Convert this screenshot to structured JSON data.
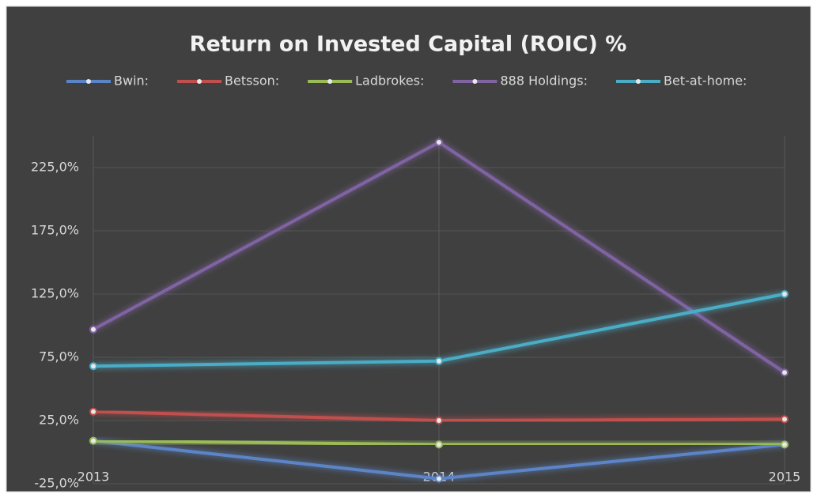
{
  "chart_data": {
    "type": "line",
    "title": "Return on Invested Capital (ROIC) %",
    "categories": [
      "2013",
      "2014",
      "2015"
    ],
    "series": [
      {
        "name": "Bwin:",
        "color": "#5b84c6",
        "values": [
          9,
          -21,
          6
        ]
      },
      {
        "name": "Betsson:",
        "color": "#c0504d",
        "values": [
          32,
          25,
          26
        ]
      },
      {
        "name": "Ladbrokes:",
        "color": "#9bbb59",
        "values": [
          9,
          6,
          6
        ]
      },
      {
        "name": "888 Holdings:",
        "color": "#8064a2",
        "values": [
          97,
          245,
          63
        ]
      },
      {
        "name": "Bet-at-home:",
        "color": "#4bacc6",
        "values": [
          68,
          72,
          125
        ]
      }
    ],
    "ylim": [
      -25,
      250
    ],
    "yticks": [
      {
        "value": -25,
        "label": "-25,0%"
      },
      {
        "value": 25,
        "label": "25,0%"
      },
      {
        "value": 75,
        "label": "75,0%"
      },
      {
        "value": 125,
        "label": "125,0%"
      },
      {
        "value": 175,
        "label": "175,0%"
      },
      {
        "value": 225,
        "label": "225,0%"
      }
    ],
    "grid": true,
    "legend": "top"
  }
}
